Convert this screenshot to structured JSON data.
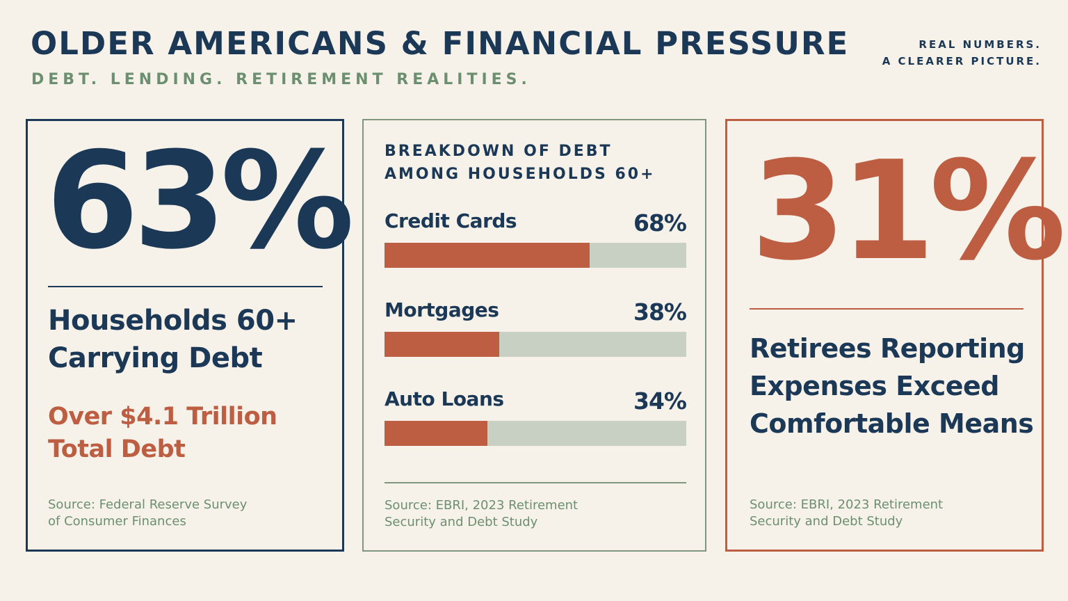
{
  "header": {
    "title": "OLDER AMERICANS & FINANCIAL PRESSURE",
    "subtitle": "DEBT. LENDING. RETIREMENT REALITIES.",
    "tagline_line1": "REAL NUMBERS.",
    "tagline_line2": "A CLEARER PICTURE."
  },
  "left_card": {
    "stat": "63%",
    "label": "Households 60+ Carrying Debt",
    "accent": "Over $4.1 Trillion Total Debt",
    "source": "Source: Federal Reserve Survey of Consumer Finances"
  },
  "middle_card": {
    "heading_line1": "BREAKDOWN OF DEBT",
    "heading_line2": "AMONG HOUSEHOLDS 60+",
    "source": "Source: EBRI, 2023 Retirement Security and Debt Study"
  },
  "right_card": {
    "stat": "31%",
    "label": "Retirees Reporting Expenses Exceed Comfortable Means",
    "source": "Source: EBRI, 2023 Retirement Security and Debt Study"
  },
  "chart_data": {
    "type": "bar",
    "orientation": "horizontal",
    "categories": [
      "Credit Cards",
      "Mortgages",
      "Auto Loans"
    ],
    "values": [
      68,
      38,
      34
    ],
    "value_labels": [
      "68%",
      "38%",
      "34%"
    ],
    "xlim": [
      0,
      100
    ],
    "grid": false
  },
  "colors": {
    "navy": "#1b3856",
    "accent": "#bd5d42",
    "sage": "#6c8f6f",
    "track": "#c8cfc3",
    "background": "#f6f2ea"
  }
}
